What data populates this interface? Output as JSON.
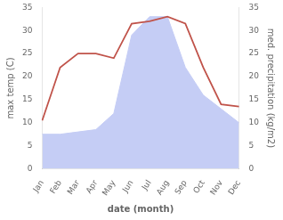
{
  "chart_data": {
    "type": "line",
    "categories": [
      "Jan",
      "Feb",
      "Mar",
      "Apr",
      "May",
      "Jun",
      "Jul",
      "Aug",
      "Sep",
      "Oct",
      "Nov",
      "Dec"
    ],
    "xlabel": "date (month)",
    "ylabel": "max temp (C)",
    "y2label": "med. precipitation (kg/m2)",
    "series": [
      {
        "type": "line",
        "color": "#c0534a",
        "values": [
          10.5,
          22.0,
          25.0,
          25.0,
          24.0,
          31.5,
          32.0,
          33.0,
          31.5,
          22.0,
          14.0,
          13.5
        ]
      },
      {
        "type": "area",
        "color": "#c5cdf5",
        "axis": "y2",
        "values": [
          7.5,
          7.5,
          8.0,
          8.5,
          12.0,
          29.0,
          33.0,
          33.0,
          22.0,
          16.0,
          13.0,
          10.0
        ]
      }
    ],
    "ylim": [
      0,
      35
    ],
    "yticks": [
      0,
      5,
      10,
      15,
      20,
      25,
      30,
      35
    ],
    "y2lim": [
      0,
      35
    ],
    "y2ticks": [
      0,
      5,
      10,
      15,
      20,
      25,
      30,
      35
    ],
    "grid": false
  }
}
